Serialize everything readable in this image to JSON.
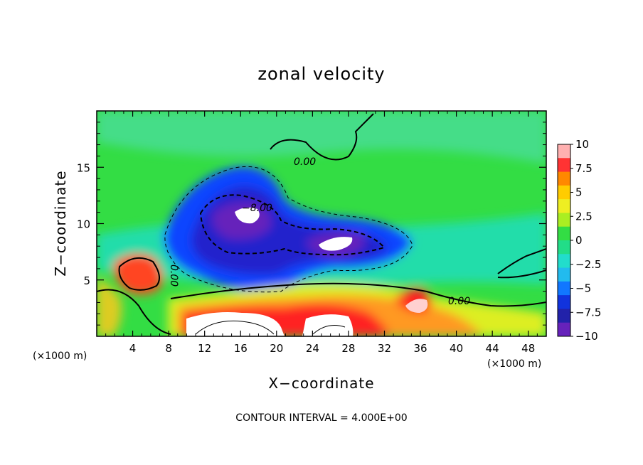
{
  "chart_data": {
    "type": "heatmap",
    "title": "zonal velocity",
    "xlabel": "X−coordinate",
    "ylabel": "Z−coordinate",
    "x_unit": "(×1000 m)",
    "x_unit_right": "(×1000 m)",
    "xlim": [
      0,
      50
    ],
    "ylim": [
      0,
      20
    ],
    "x_ticks": [
      4,
      8,
      12,
      16,
      20,
      24,
      28,
      32,
      36,
      40,
      44,
      48
    ],
    "y_ticks": [
      5,
      10,
      15
    ],
    "colorbar": {
      "range": [
        -10,
        10
      ],
      "ticks": [
        10,
        7.5,
        5,
        2.5,
        0,
        -2.5,
        -5,
        -7.5,
        -10
      ],
      "tick_labels": [
        "10",
        "7.5",
        "5",
        "2.5",
        "0",
        "−2.5",
        "−5",
        "−7.5",
        "−10"
      ]
    },
    "contour_labels": [
      "0.00",
      "−8.00",
      "0.00",
      "0.00"
    ],
    "footer": "CONTOUR INTERVAL = 4.000E+00"
  }
}
